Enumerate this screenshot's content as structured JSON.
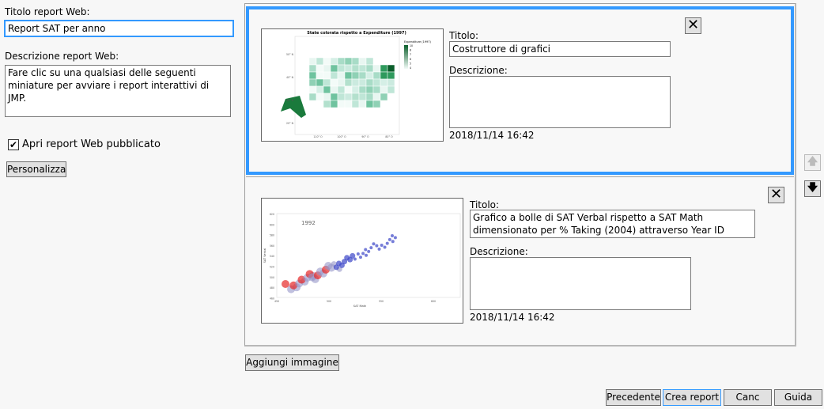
{
  "left": {
    "title_label": "Titolo report Web:",
    "title_value": "Report SAT per anno",
    "desc_label": "Descrizione report Web:",
    "desc_value": "Fare clic su una qualsiasi delle seguenti miniature per avviare i report interattivi di JMP.",
    "open_checkbox_label": "Apri report Web pubblicato",
    "open_checked": true,
    "customize_button": "Personalizza"
  },
  "items": [
    {
      "title_label": "Titolo:",
      "title_value": "Costruttore di grafici",
      "desc_label": "Descrizione:",
      "desc_value": "",
      "date": "2018/11/14 16:42",
      "selected": true,
      "thumbnail": {
        "title": "State colorata rispetto a Expenditure (1997)",
        "legend_title": "Expenditure (1997)",
        "legend_ticks": [
          "10",
          "8",
          "7",
          "6",
          "5",
          "4"
        ],
        "y_ticks": [
          "50° N",
          "40° N",
          "30° N",
          "20° N"
        ],
        "x_ticks": [
          "110° O",
          "100° O",
          "90° O",
          "80° O"
        ],
        "color": "#1a7a3c"
      }
    },
    {
      "title_label": "Titolo:",
      "title_value": "Grafico a bolle di SAT Verbal rispetto a SAT Math dimensionato per % Taking (2004) attraverso Year ID State",
      "desc_label": "Descrizione:",
      "desc_value": "",
      "date": "2018/11/14 16:42",
      "selected": false,
      "thumbnail": {
        "year": "1992",
        "x_label": "SAT Math",
        "y_label": "SAT Verbal",
        "x_ticks": [
          "450",
          "500",
          "550",
          "600"
        ],
        "y_ticks": [
          "620",
          "600",
          "580",
          "560",
          "540",
          "520",
          "500",
          "480",
          "460"
        ]
      }
    }
  ],
  "add_image_button": "Aggiungi immagine",
  "move_up_icon": "arrow-up-icon",
  "move_down_icon": "arrow-down-icon",
  "remove_icon": "close-x-icon",
  "footer": {
    "previous": "Precedente",
    "create": "Crea report",
    "cancel": "Canc",
    "help": "Guida"
  },
  "accent": "#3399ff"
}
